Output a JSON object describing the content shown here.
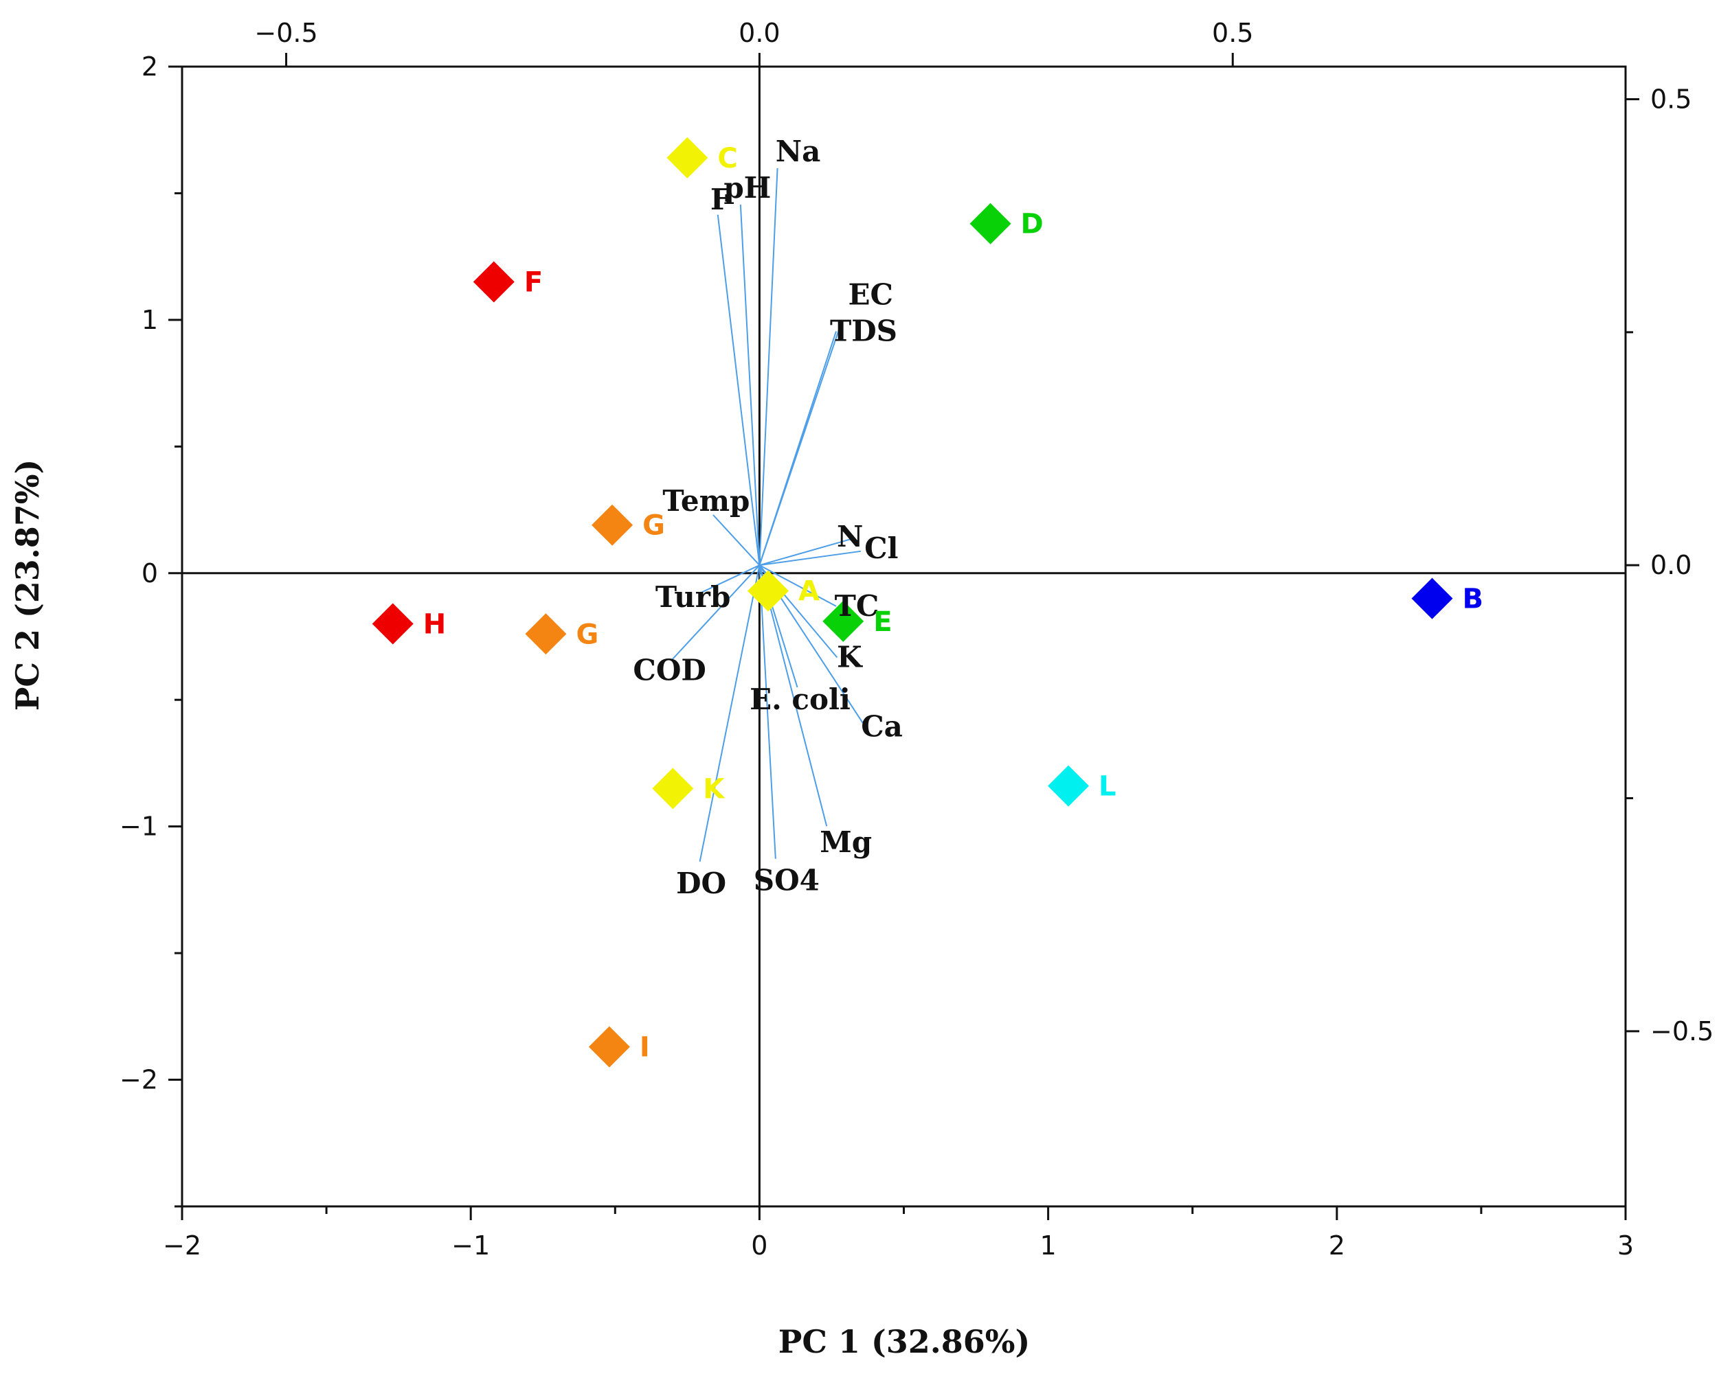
{
  "chart_data": {
    "type": "scatter",
    "subtype": "pca-biplot",
    "xlabel": "PC 1 (32.86%)",
    "ylabel": "PC 2 (23.87%)",
    "xlim": [
      -2,
      3
    ],
    "ylim": [
      -2.5,
      2
    ],
    "xticks": [
      -2,
      -1,
      0,
      1,
      2,
      3
    ],
    "yticks": [
      -2,
      -1,
      0,
      1,
      2
    ],
    "x_tick_labels": [
      "−2",
      "−1",
      "0",
      "1",
      "2",
      "3"
    ],
    "y_tick_labels": [
      "−2",
      "−1",
      "0",
      "1",
      "2"
    ],
    "loading_axis_top": {
      "lim": [
        -0.61,
        0.915
      ],
      "ticks": [
        -0.5,
        0.0,
        0.5
      ],
      "labels": [
        "−0.5",
        "0.0",
        "0.5"
      ]
    },
    "loading_axis_right": {
      "lim": [
        -0.688,
        0.535
      ],
      "ticks": [
        -0.5,
        0.0,
        0.5
      ],
      "labels": [
        "−0.5",
        "0.0",
        "0.5"
      ]
    },
    "loadings": [
      {
        "name": "Na",
        "x": 0.019,
        "y": 0.426
      },
      {
        "name": "pH",
        "x": -0.02,
        "y": 0.387
      },
      {
        "name": "F",
        "x": -0.044,
        "y": 0.376
      },
      {
        "name": "EC",
        "x": 0.087,
        "y": 0.262
      },
      {
        "name": "TDS",
        "x": 0.081,
        "y": 0.251
      },
      {
        "name": "Temp",
        "x": -0.049,
        "y": 0.054
      },
      {
        "name": "N",
        "x": 0.1,
        "y": 0.029
      },
      {
        "name": "Cl",
        "x": 0.107,
        "y": 0.015
      },
      {
        "name": "Turb",
        "x": -0.063,
        "y": -0.03
      },
      {
        "name": "COD",
        "x": -0.092,
        "y": -0.101
      },
      {
        "name": "TC",
        "x": 0.081,
        "y": -0.044
      },
      {
        "name": "K",
        "x": 0.082,
        "y": -0.099
      },
      {
        "name": "E. coli",
        "x": 0.04,
        "y": -0.131
      },
      {
        "name": "Ca",
        "x": 0.109,
        "y": -0.169
      },
      {
        "name": "Mg",
        "x": 0.071,
        "y": -0.28
      },
      {
        "name": "SO4",
        "x": 0.017,
        "y": -0.315
      },
      {
        "name": "DO",
        "x": -0.063,
        "y": -0.318
      }
    ],
    "series": [
      {
        "name": "A",
        "x": 0.03,
        "y": -0.07,
        "color": "#f2f205"
      },
      {
        "name": "B",
        "x": 2.33,
        "y": -0.1,
        "color": "#0000ee"
      },
      {
        "name": "C",
        "x": -0.25,
        "y": 1.64,
        "color": "#f2f205"
      },
      {
        "name": "D",
        "x": 0.8,
        "y": 1.38,
        "color": "#08d108"
      },
      {
        "name": "E",
        "x": 0.29,
        "y": -0.19,
        "color": "#08d108"
      },
      {
        "name": "F",
        "x": -0.92,
        "y": 1.15,
        "color": "#ee0000"
      },
      {
        "name": "G",
        "x": -0.51,
        "y": 0.19,
        "color": "#f58512"
      },
      {
        "name": "G",
        "x": -0.74,
        "y": -0.24,
        "color": "#f58512"
      },
      {
        "name": "H",
        "x": -1.27,
        "y": -0.2,
        "color": "#ee0000"
      },
      {
        "name": "I",
        "x": -0.52,
        "y": -1.87,
        "color": "#f58512"
      },
      {
        "name": "K",
        "x": -0.3,
        "y": -0.85,
        "color": "#f2f205"
      },
      {
        "name": "L",
        "x": 1.07,
        "y": -0.84,
        "color": "#00f0f0"
      }
    ]
  },
  "colors": {
    "vector": "#4d9ee8",
    "axis": "#111111"
  }
}
